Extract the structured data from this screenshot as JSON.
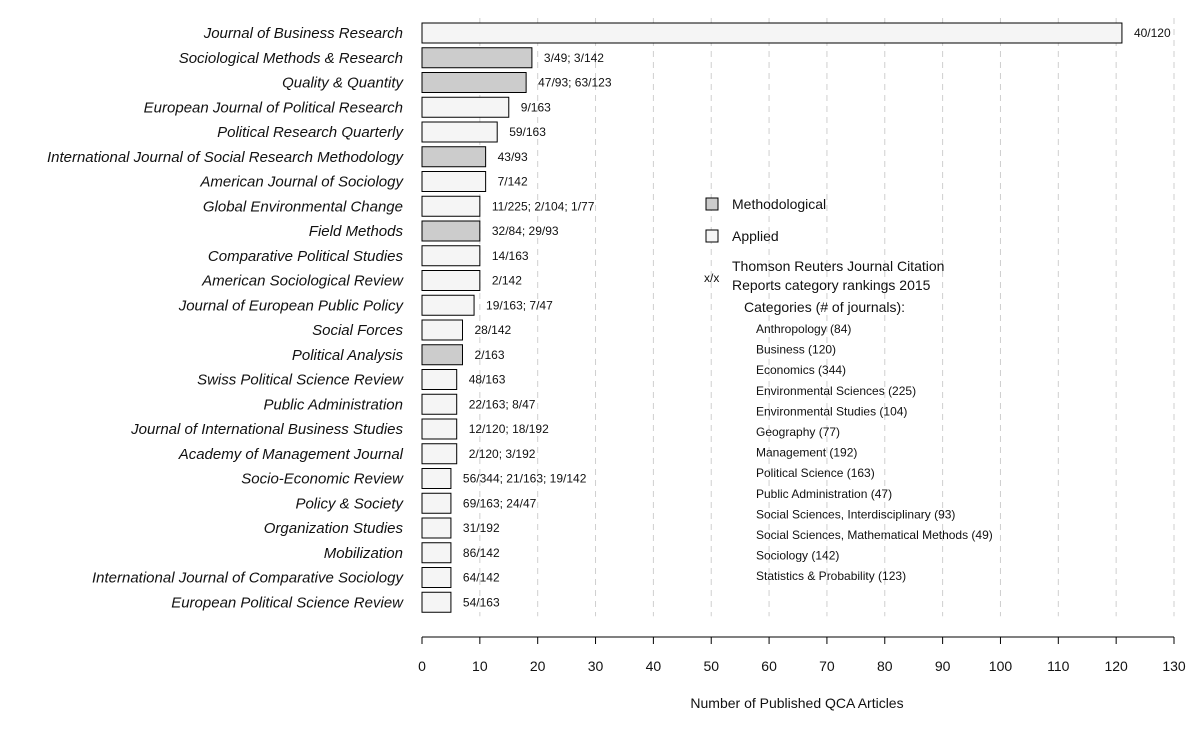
{
  "chart_data": {
    "type": "bar",
    "orientation": "horizontal",
    "xlabel": "Number of Published QCA Articles",
    "xlim": [
      0,
      130
    ],
    "xticks": [
      0,
      10,
      20,
      30,
      40,
      50,
      60,
      70,
      80,
      90,
      100,
      110,
      120,
      130
    ],
    "grid": "vertical dashed",
    "bars": [
      {
        "journal": "Journal of Business Research",
        "value": 121,
        "type": "Applied",
        "rank": "40/120"
      },
      {
        "journal": "Sociological Methods & Research",
        "value": 19,
        "type": "Methodological",
        "rank": "3/49; 3/142"
      },
      {
        "journal": "Quality & Quantity",
        "value": 18,
        "type": "Methodological",
        "rank": "47/93; 63/123"
      },
      {
        "journal": "European Journal of Political Research",
        "value": 15,
        "type": "Applied",
        "rank": "9/163"
      },
      {
        "journal": "Political Research Quarterly",
        "value": 13,
        "type": "Applied",
        "rank": "59/163"
      },
      {
        "journal": "International Journal of Social Research Methodology",
        "value": 11,
        "type": "Methodological",
        "rank": "43/93"
      },
      {
        "journal": "American Journal of Sociology",
        "value": 11,
        "type": "Applied",
        "rank": "7/142"
      },
      {
        "journal": "Global Environmental Change",
        "value": 10,
        "type": "Applied",
        "rank": "11/225; 2/104; 1/77"
      },
      {
        "journal": "Field Methods",
        "value": 10,
        "type": "Methodological",
        "rank": "32/84; 29/93"
      },
      {
        "journal": "Comparative Political Studies",
        "value": 10,
        "type": "Applied",
        "rank": "14/163"
      },
      {
        "journal": "American Sociological Review",
        "value": 10,
        "type": "Applied",
        "rank": "2/142"
      },
      {
        "journal": "Journal of European Public Policy",
        "value": 9,
        "type": "Applied",
        "rank": "19/163; 7/47"
      },
      {
        "journal": "Social Forces",
        "value": 7,
        "type": "Applied",
        "rank": "28/142"
      },
      {
        "journal": "Political Analysis",
        "value": 7,
        "type": "Methodological",
        "rank": "2/163"
      },
      {
        "journal": "Swiss Political Science Review",
        "value": 6,
        "type": "Applied",
        "rank": "48/163"
      },
      {
        "journal": "Public Administration",
        "value": 6,
        "type": "Applied",
        "rank": "22/163; 8/47"
      },
      {
        "journal": "Journal of International Business Studies",
        "value": 6,
        "type": "Applied",
        "rank": "12/120; 18/192"
      },
      {
        "journal": "Academy of Management Journal",
        "value": 6,
        "type": "Applied",
        "rank": "2/120; 3/192"
      },
      {
        "journal": "Socio-Economic Review",
        "value": 5,
        "type": "Applied",
        "rank": "56/344; 21/163; 19/142"
      },
      {
        "journal": "Policy & Society",
        "value": 5,
        "type": "Applied",
        "rank": "69/163; 24/47"
      },
      {
        "journal": "Organization Studies",
        "value": 5,
        "type": "Applied",
        "rank": "31/192"
      },
      {
        "journal": "Mobilization",
        "value": 5,
        "type": "Applied",
        "rank": "86/142"
      },
      {
        "journal": "International Journal of Comparative Sociology",
        "value": 5,
        "type": "Applied",
        "rank": "64/142"
      },
      {
        "journal": "European Political Science Review",
        "value": 5,
        "type": "Applied",
        "rank": "54/163"
      }
    ],
    "legend": {
      "placement": "center-right",
      "methodological_label": "Methodological",
      "applied_label": "Applied",
      "rank_symbol": "x/x",
      "rank_line1": "Thomson Reuters Journal Citation",
      "rank_line2": "Reports category rankings 2015",
      "categories_title": "Categories (# of journals):",
      "categories": [
        "Anthropology (84)",
        "Business (120)",
        "Economics (344)",
        "Environmental Sciences (225)",
        "Environmental Studies (104)",
        "Geography (77)",
        "Management (192)",
        "Political Science (163)",
        "Public Administration (47)",
        "Social Sciences, Interdisciplinary (93)",
        "Social Sciences, Mathematical Methods (49)",
        "Sociology (142)",
        "Statistics & Probability (123)"
      ]
    },
    "colors": {
      "methodological": "#cccccc",
      "applied": "#f5f5f5",
      "grid": "#cfcfcf",
      "text": "#111111"
    }
  }
}
